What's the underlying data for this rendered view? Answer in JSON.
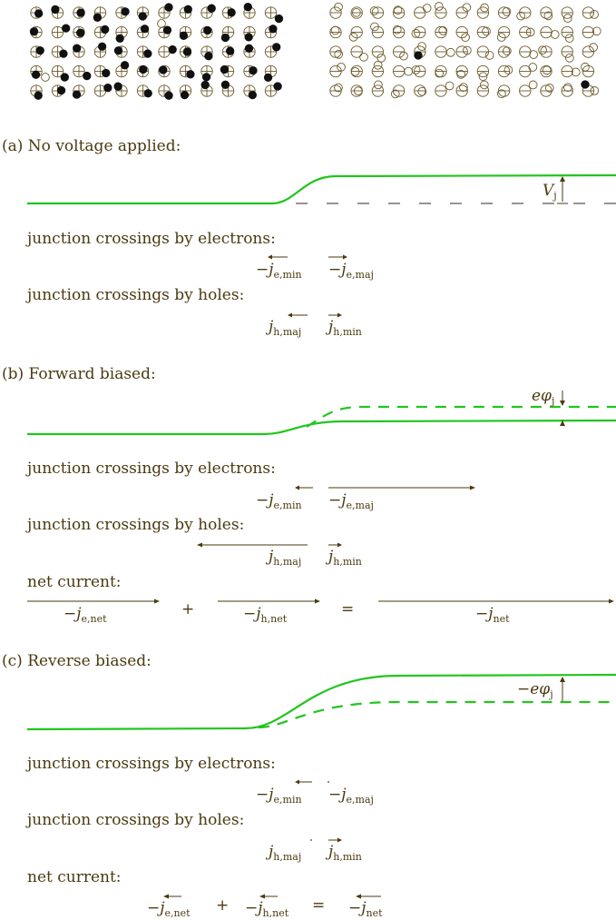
{
  "lattice": {
    "p_side": {
      "ion_symbol": "⊕",
      "carrier": "hole",
      "rows": 5,
      "cols": 12
    },
    "n_side": {
      "ion_symbol": "⊖",
      "carrier": "electron",
      "rows": 5,
      "cols": 13
    }
  },
  "colors": {
    "band": "#22c51e",
    "text": "#4a3a10",
    "lattice": "#6b5a2a"
  },
  "panels": {
    "a": {
      "title": "(a) No voltage applied:",
      "step_label": "V",
      "step_sub": "j",
      "electrons_label": "junction crossings by electrons:",
      "holes_label": "junction crossings by holes:",
      "e_min": {
        "pre": "−",
        "sym": "j",
        "sub": "e,min"
      },
      "e_maj": {
        "pre": "−",
        "sym": "j",
        "sub": "e,maj"
      },
      "h_maj": {
        "pre": "",
        "sym": "j",
        "sub": "h,maj"
      },
      "h_min": {
        "pre": "",
        "sym": "j",
        "sub": "h,min"
      }
    },
    "b": {
      "title": "(b) Forward biased:",
      "step_label": "eφ",
      "step_sub": "j",
      "electrons_label": "junction crossings by electrons:",
      "holes_label": "junction crossings by holes:",
      "net_label": "net current:",
      "e_min": {
        "pre": "−",
        "sym": "j",
        "sub": "e,min"
      },
      "e_maj": {
        "pre": "−",
        "sym": "j",
        "sub": "e,maj"
      },
      "h_maj": {
        "pre": "",
        "sym": "j",
        "sub": "h,maj"
      },
      "h_min": {
        "pre": "",
        "sym": "j",
        "sub": "h,min"
      },
      "e_net": {
        "pre": "−",
        "sym": "j",
        "sub": "e,net"
      },
      "h_net": {
        "pre": "−",
        "sym": "j",
        "sub": "h,net"
      },
      "net": {
        "pre": "−",
        "sym": "j",
        "sub": "net"
      },
      "plus": "+",
      "equals": "="
    },
    "c": {
      "title": "(c) Reverse biased:",
      "step_label": "−eφ",
      "step_sub": "j",
      "electrons_label": "junction crossings by electrons:",
      "holes_label": "junction crossings by holes:",
      "net_label": "net current:",
      "e_min": {
        "pre": "−",
        "sym": "j",
        "sub": "e,min"
      },
      "e_maj": {
        "pre": "−",
        "sym": "j",
        "sub": "e,maj"
      },
      "h_maj": {
        "pre": "",
        "sym": "j",
        "sub": "h,maj"
      },
      "h_min": {
        "pre": "",
        "sym": "j",
        "sub": "h,min"
      },
      "e_net": {
        "pre": "−",
        "sym": "j",
        "sub": "e,net"
      },
      "h_net": {
        "pre": "−",
        "sym": "j",
        "sub": "h,net"
      },
      "net": {
        "pre": "−",
        "sym": "j",
        "sub": "net"
      },
      "plus": "+",
      "equals": "="
    }
  }
}
